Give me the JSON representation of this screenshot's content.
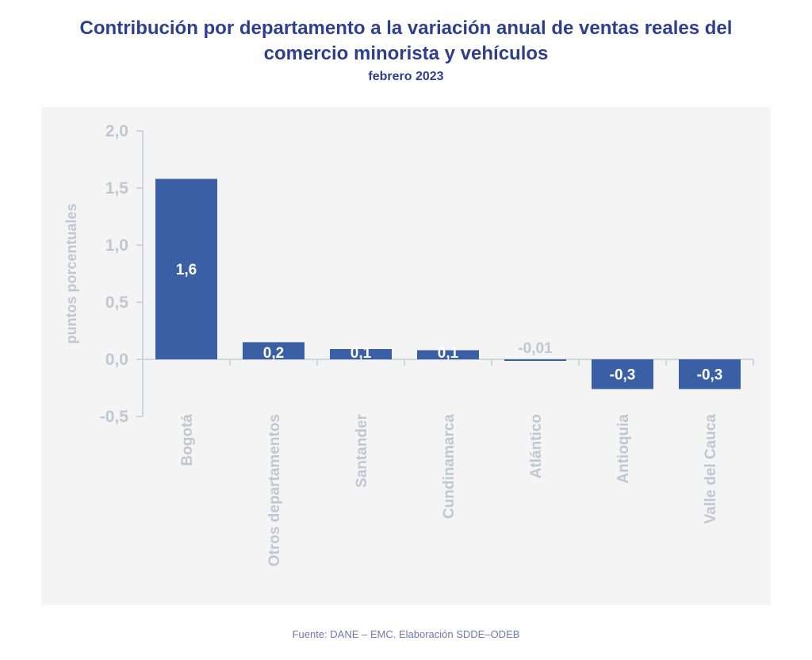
{
  "title_line1": "Contribución por departamento a la variación anual de ventas reales del",
  "title_line2": "comercio minorista y vehículos",
  "subtitle": "febrero 2023",
  "source": "Fuente: DANE – EMC. Elaboración SDDE–ODEB",
  "colors": {
    "bar": "#3a5fa5",
    "axis": "#c5cbd6",
    "tick_text": "#c0c7d2",
    "title": "#2f3f8f"
  },
  "chart_data": {
    "type": "bar",
    "title": "Contribución por departamento a la variación anual de ventas reales del comercio minorista y vehículos",
    "subtitle": "febrero 2023",
    "xlabel": "",
    "ylabel": "puntos porcentuales",
    "ylim": [
      -0.5,
      2.0
    ],
    "yticks": [
      -0.5,
      0.0,
      0.5,
      1.0,
      1.5,
      2.0
    ],
    "ytick_labels": [
      "-0,5",
      "0,0",
      "0,5",
      "1,0",
      "1,5",
      "2,0"
    ],
    "categories": [
      "Bogotá",
      "Otros departamentos",
      "Santander",
      "Cundinamarca",
      "Atlántico",
      "Antioquia",
      "Valle del Cauca"
    ],
    "values": [
      1.58,
      0.15,
      0.09,
      0.08,
      -0.01,
      -0.26,
      -0.26
    ],
    "data_labels": [
      "1,6",
      "0,2",
      "0,1",
      "0,1",
      "-0,01",
      "-0,3",
      "-0,3"
    ],
    "grid": false,
    "legend": "none"
  }
}
